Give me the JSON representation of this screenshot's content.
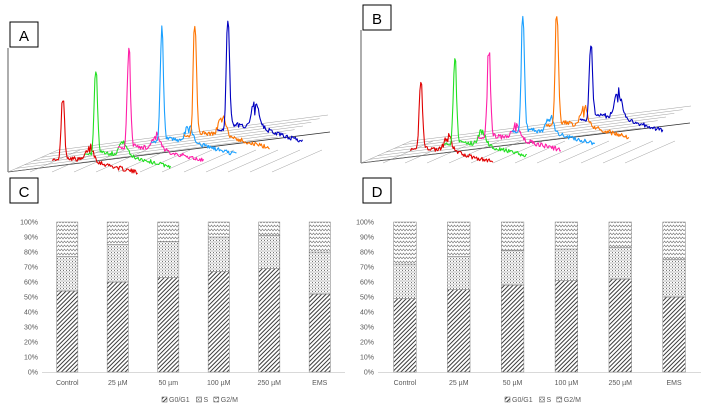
{
  "panels": {
    "A": "A",
    "B": "B",
    "C": "C",
    "D": "D"
  },
  "histogram_colors": [
    "#e00000",
    "#22e022",
    "#ff1fa8",
    "#1aa0ff",
    "#ff7400",
    "#0000c0"
  ],
  "pattern_colors": {
    "g0g1": "#404040",
    "s": "#555555",
    "g2m": "#555555"
  },
  "chart_data": [
    {
      "type": "bar",
      "stacked": true,
      "panel": "C",
      "title": "",
      "categories": [
        "Control",
        "25 µM",
        "50 µm",
        "100 µM",
        "250  µM",
        "EMS"
      ],
      "series": [
        {
          "name": "G0/G1",
          "values": [
            54,
            60,
            63,
            67,
            69,
            52
          ]
        },
        {
          "name": "S",
          "values": [
            23,
            25,
            24,
            23,
            22,
            28
          ]
        },
        {
          "name": "G2/M",
          "values": [
            23,
            15,
            13,
            10,
            9,
            20
          ]
        }
      ],
      "ylim": [
        0,
        100
      ],
      "yticks": [
        "0%",
        "10%",
        "20%",
        "30%",
        "40%",
        "50%",
        "60%",
        "70%",
        "80%",
        "90%",
        "100%"
      ],
      "legend": "bottom"
    },
    {
      "type": "bar",
      "stacked": true,
      "panel": "D",
      "title": "",
      "categories": [
        "Control",
        "25 µM",
        "50 µM",
        "100 µM",
        "250 µM",
        "EMS"
      ],
      "series": [
        {
          "name": "G0/G1",
          "values": [
            49,
            55,
            58,
            61,
            62,
            50
          ]
        },
        {
          "name": "S",
          "values": [
            23,
            22,
            23,
            21,
            21,
            25
          ]
        },
        {
          "name": "G2/M",
          "values": [
            28,
            23,
            19,
            18,
            17,
            25
          ]
        }
      ],
      "ylim": [
        0,
        100
      ],
      "yticks": [
        "0%",
        "10%",
        "20%",
        "30%",
        "40%",
        "50%",
        "60%",
        "70%",
        "80%",
        "90%",
        "100%"
      ],
      "legend": "bottom"
    }
  ]
}
